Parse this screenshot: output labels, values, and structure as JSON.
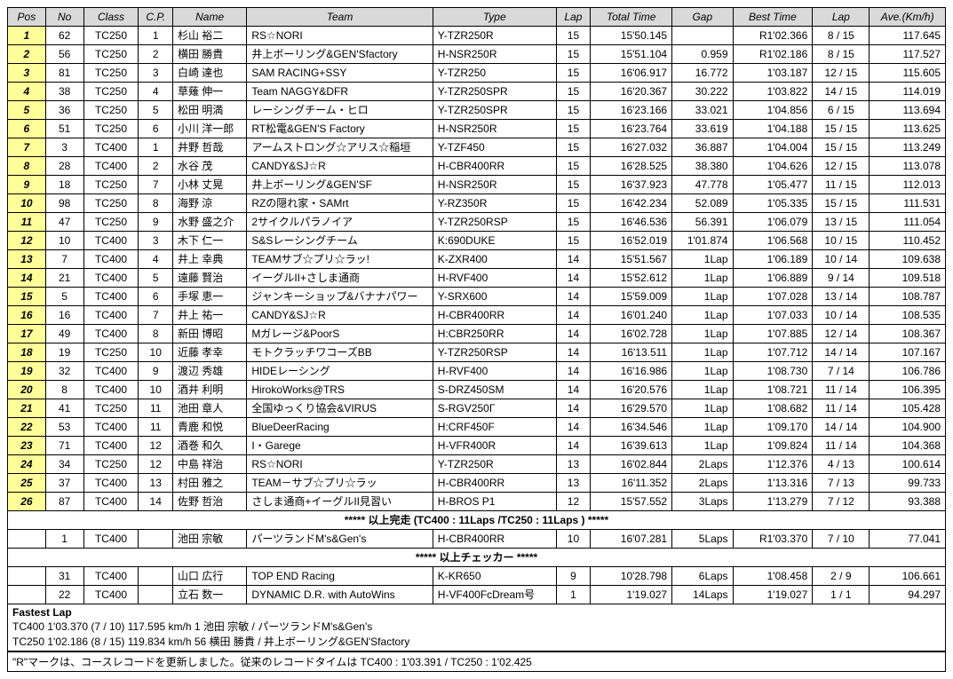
{
  "columns": [
    "Pos",
    "No",
    "Class",
    "C.P.",
    "Name",
    "Team",
    "Type",
    "Lap",
    "Total Time",
    "Gap",
    "Best Time",
    "Lap",
    "Ave.(Km/h)"
  ],
  "rows": [
    {
      "pos": "1",
      "no": "62",
      "class": "TC250",
      "cp": "1",
      "name": "杉山 裕二",
      "team": "RS☆NORI",
      "type": "Y-TZR250R",
      "lap": "15",
      "total": "15'50.145",
      "gap": "",
      "best": "R1'02.366",
      "lap2": "8 / 15",
      "ave": "117.645"
    },
    {
      "pos": "2",
      "no": "56",
      "class": "TC250",
      "cp": "2",
      "name": "横田 勝貴",
      "team": "井上ボーリング&GEN'Sfactory",
      "type": "H-NSR250R",
      "lap": "15",
      "total": "15'51.104",
      "gap": "0.959",
      "best": "R1'02.186",
      "lap2": "8 / 15",
      "ave": "117.527"
    },
    {
      "pos": "3",
      "no": "81",
      "class": "TC250",
      "cp": "3",
      "name": "白崎 達也",
      "team": "SAM RACING+SSY",
      "type": "Y-TZR250",
      "lap": "15",
      "total": "16'06.917",
      "gap": "16.772",
      "best": "1'03.187",
      "lap2": "12 / 15",
      "ave": "115.605"
    },
    {
      "pos": "4",
      "no": "38",
      "class": "TC250",
      "cp": "4",
      "name": "草薙 伸一",
      "team": "Team NAGGY&DFR",
      "type": "Y-TZR250SPR",
      "lap": "15",
      "total": "16'20.367",
      "gap": "30.222",
      "best": "1'03.822",
      "lap2": "14 / 15",
      "ave": "114.019"
    },
    {
      "pos": "5",
      "no": "36",
      "class": "TC250",
      "cp": "5",
      "name": "松田 明満",
      "team": "レーシングチーム・ヒロ",
      "type": "Y-TZR250SPR",
      "lap": "15",
      "total": "16'23.166",
      "gap": "33.021",
      "best": "1'04.856",
      "lap2": "6 / 15",
      "ave": "113.694"
    },
    {
      "pos": "6",
      "no": "51",
      "class": "TC250",
      "cp": "6",
      "name": "小川 洋一郎",
      "team": "RT松電&GEN'S Factory",
      "type": "H-NSR250R",
      "lap": "15",
      "total": "16'23.764",
      "gap": "33.619",
      "best": "1'04.188",
      "lap2": "15 / 15",
      "ave": "113.625"
    },
    {
      "pos": "7",
      "no": "3",
      "class": "TC400",
      "cp": "1",
      "name": "井野 哲哉",
      "team": "アームストロング☆アリス☆稲垣",
      "type": "Y-TZF450",
      "lap": "15",
      "total": "16'27.032",
      "gap": "36.887",
      "best": "1'04.004",
      "lap2": "15 / 15",
      "ave": "113.249"
    },
    {
      "pos": "8",
      "no": "28",
      "class": "TC400",
      "cp": "2",
      "name": "水谷 茂",
      "team": "CANDY&SJ☆R",
      "type": "H-CBR400RR",
      "lap": "15",
      "total": "16'28.525",
      "gap": "38.380",
      "best": "1'04.626",
      "lap2": "12 / 15",
      "ave": "113.078"
    },
    {
      "pos": "9",
      "no": "18",
      "class": "TC250",
      "cp": "7",
      "name": "小林 丈晃",
      "team": "井上ボーリング&GEN'SF",
      "type": "H-NSR250R",
      "lap": "15",
      "total": "16'37.923",
      "gap": "47.778",
      "best": "1'05.477",
      "lap2": "11 / 15",
      "ave": "112.013"
    },
    {
      "pos": "10",
      "no": "98",
      "class": "TC250",
      "cp": "8",
      "name": "海野 涼",
      "team": "RZの隠れ家・SAMrt",
      "type": "Y-RZ350R",
      "lap": "15",
      "total": "16'42.234",
      "gap": "52.089",
      "best": "1'05.335",
      "lap2": "15 / 15",
      "ave": "111.531"
    },
    {
      "pos": "11",
      "no": "47",
      "class": "TC250",
      "cp": "9",
      "name": "水野 盛之介",
      "team": "2サイクルパラノイア",
      "type": "Y-TZR250RSP",
      "lap": "15",
      "total": "16'46.536",
      "gap": "56.391",
      "best": "1'06.079",
      "lap2": "13 / 15",
      "ave": "111.054"
    },
    {
      "pos": "12",
      "no": "10",
      "class": "TC400",
      "cp": "3",
      "name": "木下 仁一",
      "team": "S&Sレーシングチーム",
      "type": "K:690DUKE",
      "lap": "15",
      "total": "16'52.019",
      "gap": "1'01.874",
      "best": "1'06.568",
      "lap2": "10 / 15",
      "ave": "110.452"
    },
    {
      "pos": "13",
      "no": "7",
      "class": "TC400",
      "cp": "4",
      "name": "井上 幸典",
      "team": "TEAMサブ☆プリ☆ラッ!",
      "type": "K-ZXR400",
      "lap": "14",
      "total": "15'51.567",
      "gap": "1Lap",
      "best": "1'06.189",
      "lap2": "10 / 14",
      "ave": "109.638"
    },
    {
      "pos": "14",
      "no": "21",
      "class": "TC400",
      "cp": "5",
      "name": "遠藤 賢治",
      "team": "イーグルII+さしま通商",
      "type": "H-RVF400",
      "lap": "14",
      "total": "15'52.612",
      "gap": "1Lap",
      "best": "1'06.889",
      "lap2": "9 / 14",
      "ave": "109.518"
    },
    {
      "pos": "15",
      "no": "5",
      "class": "TC400",
      "cp": "6",
      "name": "手塚 恵一",
      "team": "ジャンキーショップ&バナナパワー",
      "type": "Y-SRX600",
      "lap": "14",
      "total": "15'59.009",
      "gap": "1Lap",
      "best": "1'07.028",
      "lap2": "13 / 14",
      "ave": "108.787"
    },
    {
      "pos": "16",
      "no": "16",
      "class": "TC400",
      "cp": "7",
      "name": "井上 祐一",
      "team": "CANDY&SJ☆R",
      "type": "H-CBR400RR",
      "lap": "14",
      "total": "16'01.240",
      "gap": "1Lap",
      "best": "1'07.033",
      "lap2": "10 / 14",
      "ave": "108.535"
    },
    {
      "pos": "17",
      "no": "49",
      "class": "TC400",
      "cp": "8",
      "name": "新田 博昭",
      "team": "Mガレージ&PoorS",
      "type": "H:CBR250RR",
      "lap": "14",
      "total": "16'02.728",
      "gap": "1Lap",
      "best": "1'07.885",
      "lap2": "12 / 14",
      "ave": "108.367"
    },
    {
      "pos": "18",
      "no": "19",
      "class": "TC250",
      "cp": "10",
      "name": "近藤 孝幸",
      "team": "モトクラッチワコーズBB",
      "type": "Y-TZR250RSP",
      "lap": "14",
      "total": "16'13.511",
      "gap": "1Lap",
      "best": "1'07.712",
      "lap2": "14 / 14",
      "ave": "107.167"
    },
    {
      "pos": "19",
      "no": "32",
      "class": "TC400",
      "cp": "9",
      "name": "渡辺 秀雄",
      "team": "HIDEレーシング",
      "type": "H-RVF400",
      "lap": "14",
      "total": "16'16.986",
      "gap": "1Lap",
      "best": "1'08.730",
      "lap2": "7 / 14",
      "ave": "106.786"
    },
    {
      "pos": "20",
      "no": "8",
      "class": "TC400",
      "cp": "10",
      "name": "酒井 利明",
      "team": "HirokoWorks@TRS",
      "type": "S-DRZ450SM",
      "lap": "14",
      "total": "16'20.576",
      "gap": "1Lap",
      "best": "1'08.721",
      "lap2": "11 / 14",
      "ave": "106.395"
    },
    {
      "pos": "21",
      "no": "41",
      "class": "TC250",
      "cp": "11",
      "name": "池田 章人",
      "team": "全国ゆっくり協会&VIRUS",
      "type": "S-RGV250Г",
      "lap": "14",
      "total": "16'29.570",
      "gap": "1Lap",
      "best": "1'08.682",
      "lap2": "11 / 14",
      "ave": "105.428"
    },
    {
      "pos": "22",
      "no": "53",
      "class": "TC400",
      "cp": "11",
      "name": "青鹿 和悦",
      "team": "BlueDeerRacing",
      "type": "H:CRF450F",
      "lap": "14",
      "total": "16'34.546",
      "gap": "1Lap",
      "best": "1'09.170",
      "lap2": "14 / 14",
      "ave": "104.900"
    },
    {
      "pos": "23",
      "no": "71",
      "class": "TC400",
      "cp": "12",
      "name": "酒巻 和久",
      "team": "I・Garege",
      "type": "H-VFR400R",
      "lap": "14",
      "total": "16'39.613",
      "gap": "1Lap",
      "best": "1'09.824",
      "lap2": "11 / 14",
      "ave": "104.368"
    },
    {
      "pos": "24",
      "no": "34",
      "class": "TC250",
      "cp": "12",
      "name": "中島 祥治",
      "team": "RS☆NORI",
      "type": "Y-TZR250R",
      "lap": "13",
      "total": "16'02.844",
      "gap": "2Laps",
      "best": "1'12.376",
      "lap2": "4 / 13",
      "ave": "100.614"
    },
    {
      "pos": "25",
      "no": "37",
      "class": "TC400",
      "cp": "13",
      "name": "村田 雅之",
      "team": "TEAM－サブ☆プリ☆ラッ",
      "type": "H-CBR400RR",
      "lap": "13",
      "total": "16'11.352",
      "gap": "2Laps",
      "best": "1'13.316",
      "lap2": "7 / 13",
      "ave": "99.733"
    },
    {
      "pos": "26",
      "no": "87",
      "class": "TC400",
      "cp": "14",
      "name": "佐野 哲治",
      "team": "さしま通商+イーグルII見習い",
      "type": "H-BROS P1",
      "lap": "12",
      "total": "15'57.552",
      "gap": "3Laps",
      "best": "1'13.279",
      "lap2": "7 / 12",
      "ave": "93.388"
    }
  ],
  "divider1": "***** 以上完走 (TC400 : 11Laps /TC250 : 11Laps ) *****",
  "rows2": [
    {
      "pos": "",
      "no": "1",
      "class": "TC400",
      "cp": "",
      "name": "池田 宗敏",
      "team": "パーツランドM's&Gen's",
      "type": "H-CBR400RR",
      "lap": "10",
      "total": "16'07.281",
      "gap": "5Laps",
      "best": "R1'03.370",
      "lap2": "7 / 10",
      "ave": "77.041"
    }
  ],
  "divider2": "***** 以上チェッカー *****",
  "rows3": [
    {
      "pos": "",
      "no": "31",
      "class": "TC400",
      "cp": "",
      "name": "山口 広行",
      "team": "TOP END Racing",
      "type": "K-KR650",
      "lap": "9",
      "total": "10'28.798",
      "gap": "6Laps",
      "best": "1'08.458",
      "lap2": "2 / 9",
      "ave": "106.661"
    },
    {
      "pos": "",
      "no": "22",
      "class": "TC400",
      "cp": "",
      "name": "立石 数一",
      "team": "DYNAMIC D.R. with AutoWins",
      "type": "H-VF400FcDream号",
      "lap": "1",
      "total": "1'19.027",
      "gap": "14Laps",
      "best": "1'19.027",
      "lap2": "1 / 1",
      "ave": "94.297"
    }
  ],
  "fastest_title": "Fastest Lap",
  "fastest_lines": [
    "TC400 1'03.370 (7 / 10) 117.595 km/h 1 池田 宗敏 / パーツランドM's&Gen's",
    "TC250 1'02.186 (8 / 15) 119.834 km/h 56 横田 勝貴 / 井上ボーリング&GEN'Sfactory"
  ],
  "record_note": "\"R\"マークは、コースレコードを更新しました。従来のレコードタイムは TC400 : 1'03.391 / TC250 : 1'02.425"
}
